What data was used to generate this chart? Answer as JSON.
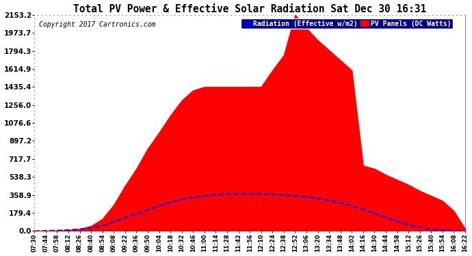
{
  "title": "Total PV Power & Effective Solar Radiation Sat Dec 30 16:31",
  "copyright": "Copyright 2017 Cartronics.com",
  "legend_radiation": "Radiation (Effective w/m2)",
  "legend_pv": "PV Panels (DC Watts)",
  "ymax": 2153.2,
  "yticks": [
    0.0,
    179.4,
    358.9,
    538.3,
    717.7,
    897.2,
    1076.6,
    1256.0,
    1435.4,
    1614.9,
    1794.3,
    1973.7,
    2153.2
  ],
  "bg_color": "#ffffff",
  "plot_bg": "#ffffff",
  "grid_color": "#aaaaaa",
  "pv_color": "#ff0000",
  "radiation_color": "#0000ff",
  "xtick_labels": [
    "07:30",
    "07:44",
    "07:58",
    "08:12",
    "08:26",
    "08:40",
    "08:54",
    "09:08",
    "09:22",
    "09:36",
    "09:50",
    "10:04",
    "10:18",
    "10:32",
    "10:46",
    "11:00",
    "11:14",
    "11:28",
    "11:42",
    "11:56",
    "12:10",
    "12:24",
    "12:38",
    "12:52",
    "13:06",
    "13:20",
    "13:34",
    "13:48",
    "14:02",
    "14:16",
    "14:30",
    "14:44",
    "14:58",
    "15:12",
    "15:26",
    "15:40",
    "15:54",
    "16:08",
    "16:22"
  ],
  "pv_values": [
    0,
    2,
    5,
    10,
    20,
    50,
    120,
    260,
    450,
    620,
    820,
    980,
    1150,
    1300,
    1400,
    1435,
    1435,
    1435,
    1435,
    1435,
    1435,
    1600,
    1750,
    2153,
    2020,
    1900,
    1800,
    1700,
    1600,
    650,
    620,
    560,
    510,
    460,
    400,
    350,
    300,
    200,
    20
  ],
  "radiation_values": [
    0,
    2,
    5,
    10,
    18,
    30,
    50,
    90,
    130,
    170,
    210,
    250,
    285,
    315,
    335,
    350,
    360,
    365,
    368,
    370,
    368,
    365,
    360,
    350,
    340,
    325,
    305,
    280,
    250,
    215,
    175,
    135,
    95,
    60,
    35,
    18,
    8,
    2,
    0
  ]
}
